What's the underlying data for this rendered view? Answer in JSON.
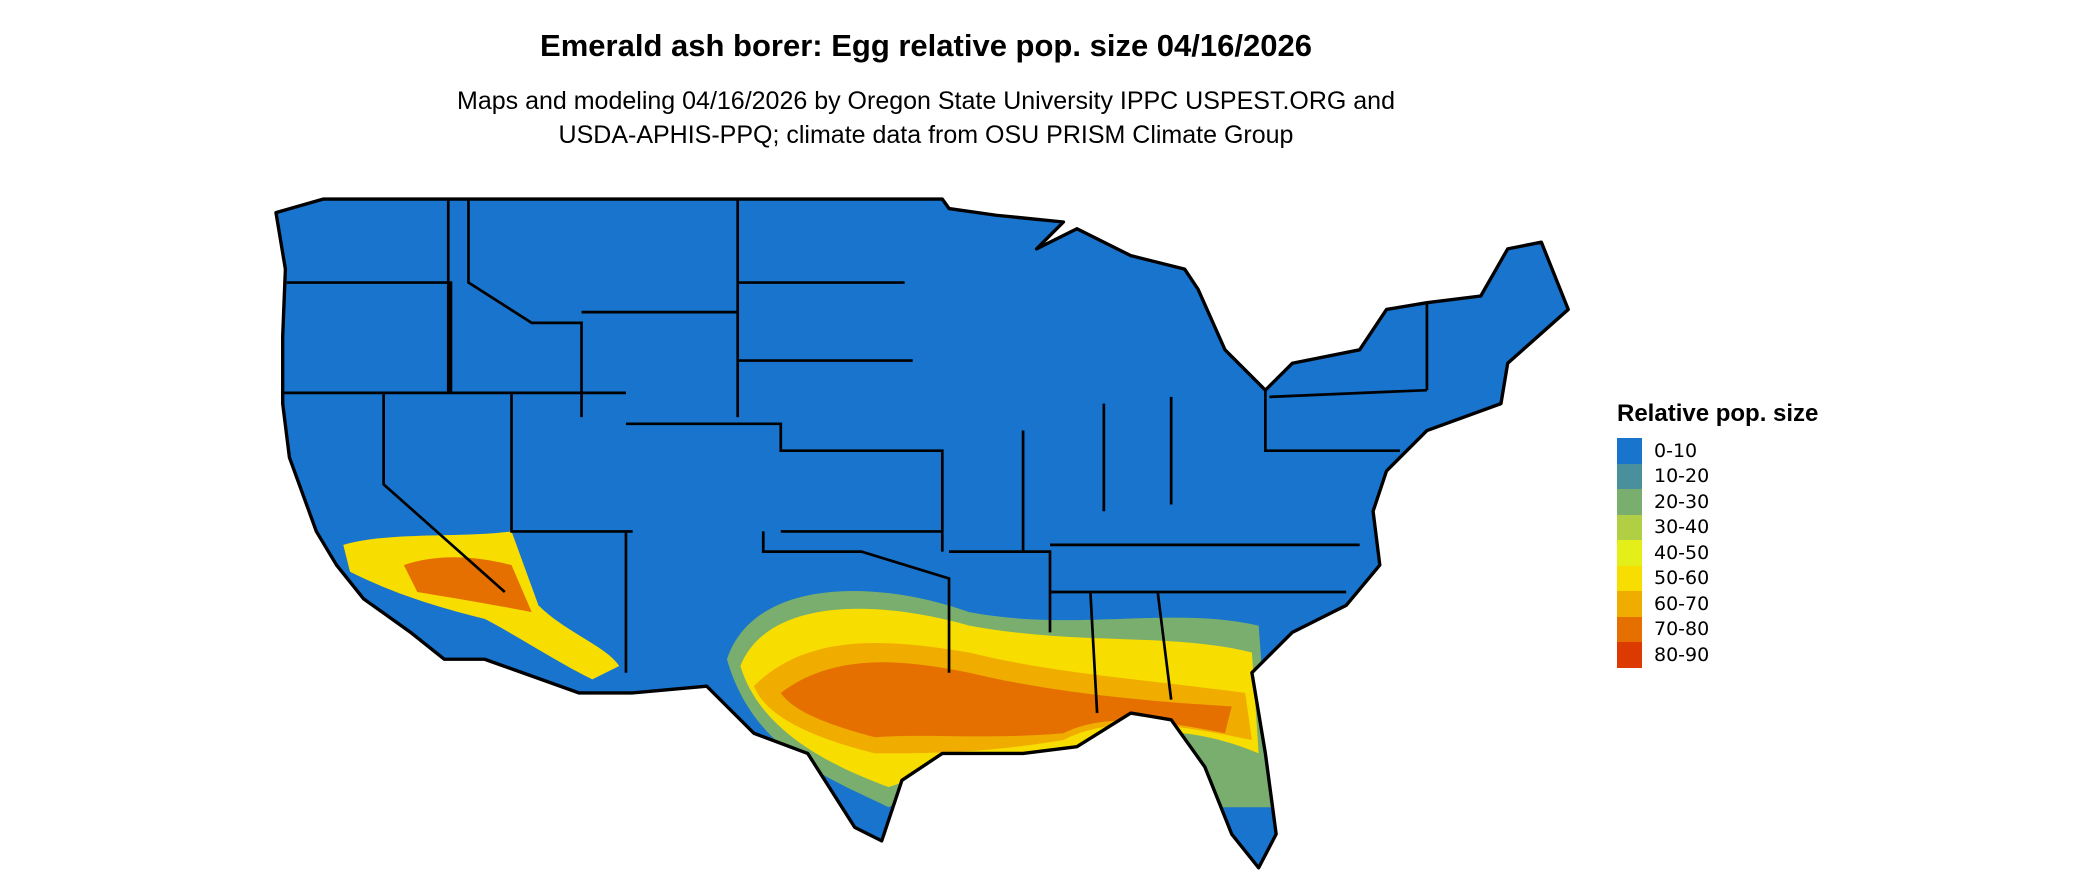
{
  "title": "Emerald ash borer: Egg relative pop. size 04/16/2026",
  "subtitle_line1": "Maps and modeling 04/16/2026 by Oregon State University IPPC USPEST.ORG and",
  "subtitle_line2": "USDA-APHIS-PPQ; climate data from OSU PRISM Climate Group",
  "legend": {
    "title": "Relative pop. size",
    "items": [
      {
        "label": "0-10",
        "color": "#1874CD"
      },
      {
        "label": "10-20",
        "color": "#4A8F9C"
      },
      {
        "label": "20-30",
        "color": "#7AAE6E"
      },
      {
        "label": "30-40",
        "color": "#B0CF45"
      },
      {
        "label": "40-50",
        "color": "#E4EE18"
      },
      {
        "label": "50-60",
        "color": "#F8DE00"
      },
      {
        "label": "60-70",
        "color": "#F0AD00"
      },
      {
        "label": "70-80",
        "color": "#E57000"
      },
      {
        "label": "80-90",
        "color": "#DC3A00"
      }
    ]
  }
}
